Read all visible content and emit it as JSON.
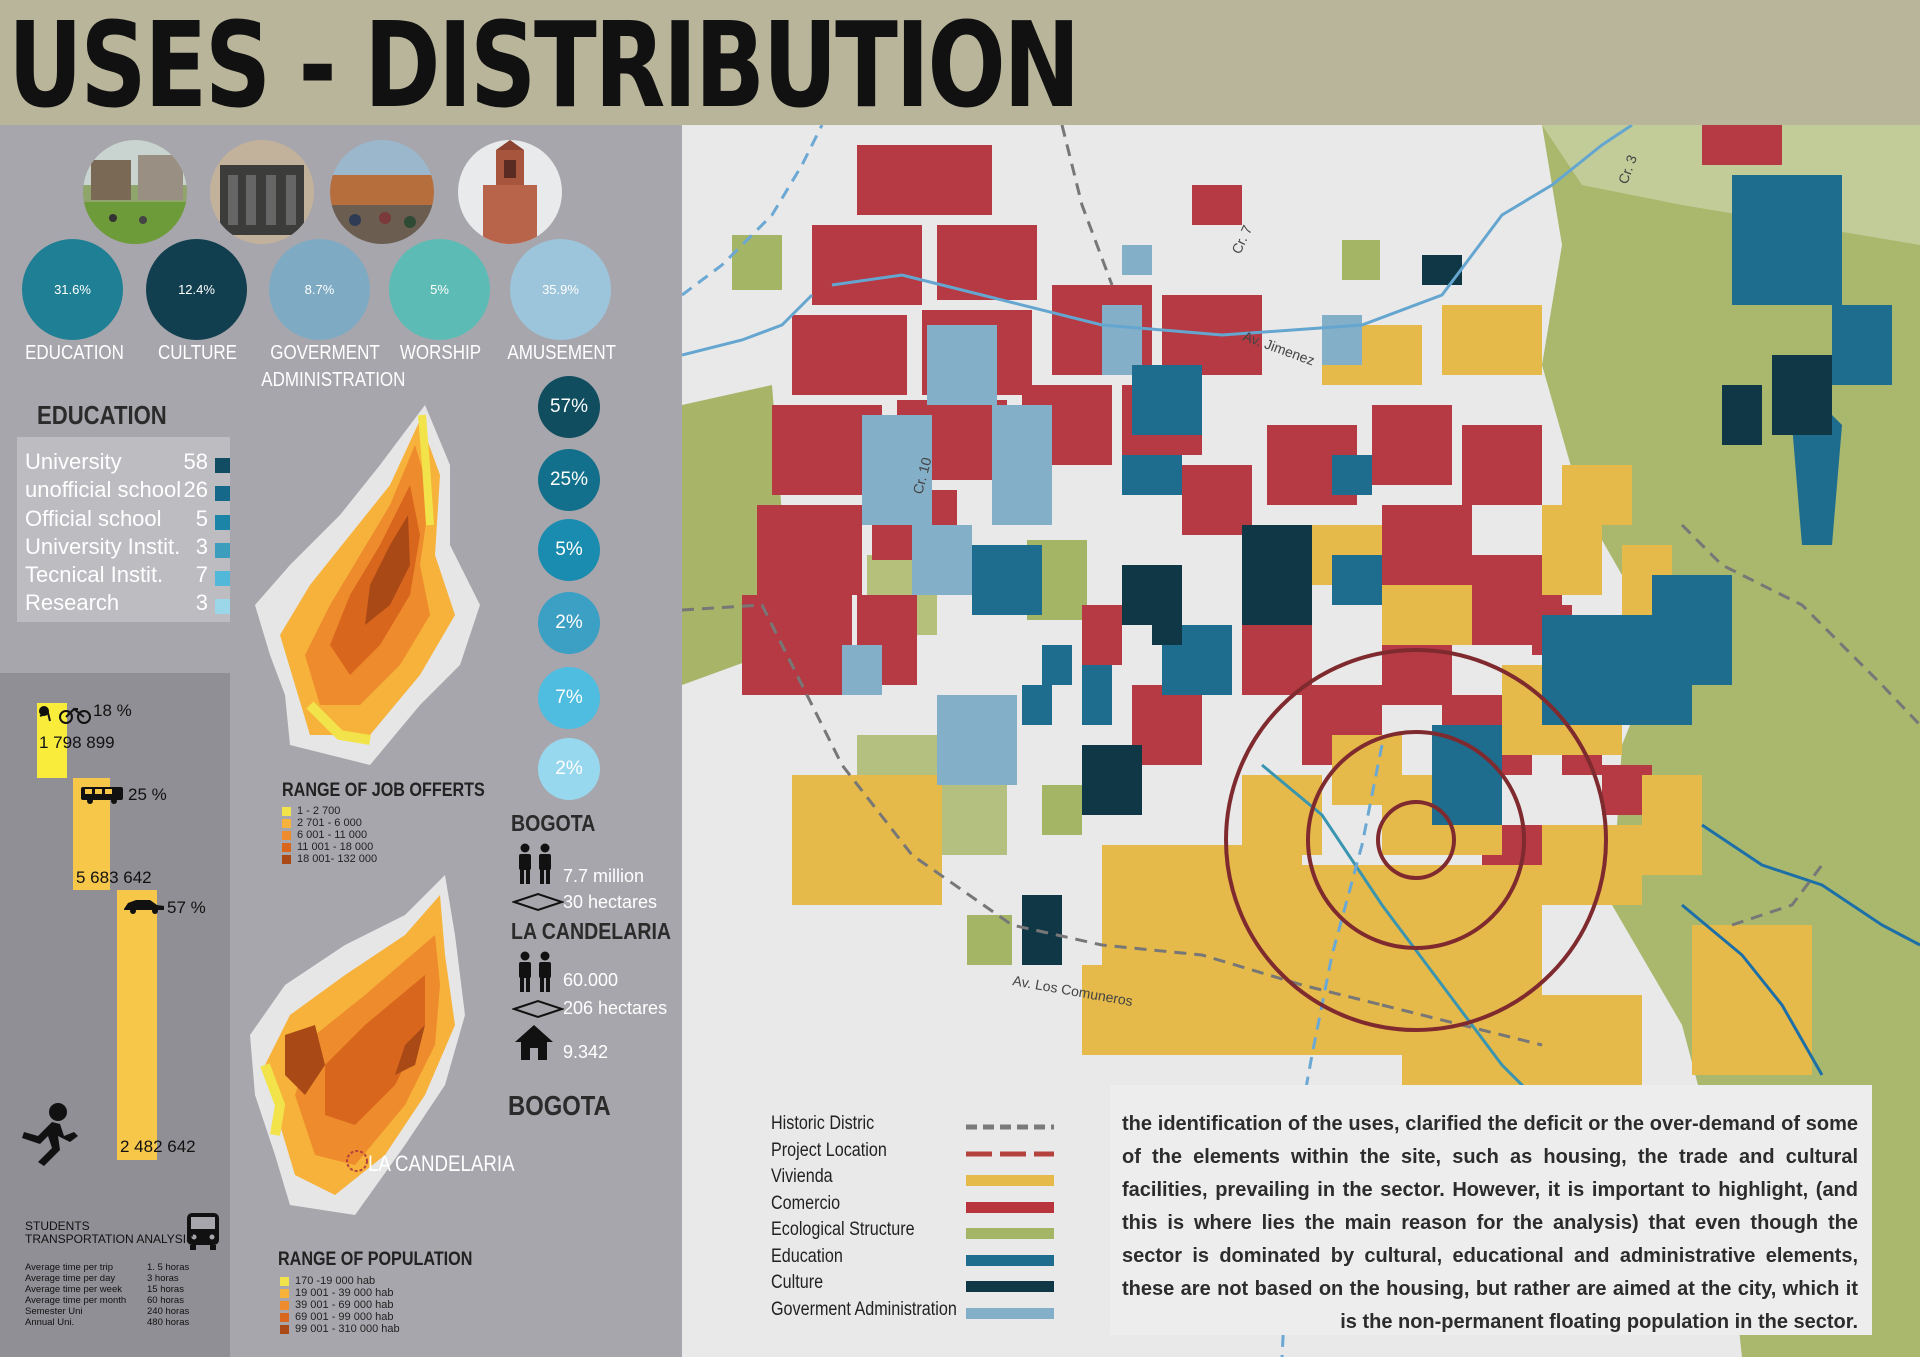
{
  "title": "USES - DISTRIBUTION",
  "categories": [
    {
      "pct": "31.6%",
      "label": "EDUCATION",
      "color": "#1f7f95"
    },
    {
      "pct": "12.4%",
      "label": "CULTURE",
      "color": "#123f4f"
    },
    {
      "pct": "8.7%",
      "label": "GOVERMENT ADMINISTRATION",
      "color": "#7eabc3"
    },
    {
      "pct": "5%",
      "label": "WORSHIP",
      "color": "#5cbcb5"
    },
    {
      "pct": "35.9%",
      "label": "AMUSEMENT",
      "color": "#9cc4da"
    }
  ],
  "photo_icons": [
    "campus-photo",
    "building-photo",
    "market-photo",
    "church-photo"
  ],
  "education": {
    "title": "EDUCATION",
    "rows": [
      {
        "label": "University",
        "count": "58",
        "color": "#124c63"
      },
      {
        "label": "unofficial school",
        "count": "26",
        "color": "#16688a"
      },
      {
        "label": "Official school",
        "count": "5",
        "color": "#1b84a7"
      },
      {
        "label": "University Instit.",
        "count": "3",
        "color": "#3d9dbd"
      },
      {
        "label": "Tecnical Instit.",
        "count": "7",
        "color": "#52b8d9"
      },
      {
        "label": "Research",
        "count": "3",
        "color": "#9bd6e9"
      }
    ],
    "percentages": [
      {
        "value": "57%",
        "color": "#0f4d5f"
      },
      {
        "value": "25%",
        "color": "#12708c"
      },
      {
        "value": "5%",
        "color": "#1a8cb0"
      },
      {
        "value": "2%",
        "color": "#3c9fc4"
      },
      {
        "value": "7%",
        "color": "#4fbde0"
      },
      {
        "value": "2%",
        "color": "#98d8ee"
      }
    ]
  },
  "transport": {
    "modes": [
      {
        "pct": "18 %",
        "count": "1 798 899",
        "icon": "bike-icon"
      },
      {
        "pct": "25 %",
        "count": "5 683 642",
        "icon": "bus-icon"
      },
      {
        "pct": "57 %",
        "count": "2 482 642",
        "icon": "car-icon"
      }
    ],
    "students_title_1": "STUDENTS",
    "students_title_2": "TRANSPORTATION ANALYSIS",
    "stats": [
      {
        "k": "Average time per trip",
        "v": "1. 5 horas"
      },
      {
        "k": "Average time per day",
        "v": "3 horas"
      },
      {
        "k": "Average time per week",
        "v": "15 horas"
      },
      {
        "k": "Average time per month",
        "v": "60 horas"
      },
      {
        "k": "Semester Uni",
        "v": "240 horas"
      },
      {
        "k": "Annual Uni.",
        "v": "480 horas"
      }
    ]
  },
  "job_map": {
    "title": "RANGE OF JOB OFFERTS",
    "legend": [
      {
        "label": "1 - 2 700",
        "color": "#f2e34a"
      },
      {
        "label": "2 701 - 6 000",
        "color": "#f6b23a"
      },
      {
        "label": "6 001 - 11 000",
        "color": "#ee8b2c"
      },
      {
        "label": "11 001 - 18 000",
        "color": "#d9661d"
      },
      {
        "label": "18 001- 132 000",
        "color": "#a94a16"
      }
    ]
  },
  "population_map": {
    "title": "RANGE OF POPULATION",
    "label": "LA CANDELARIA",
    "legend": [
      {
        "label": "170 -19 000 hab",
        "color": "#f2e34a"
      },
      {
        "label": "19 001 - 39 000 hab",
        "color": "#f6b23a"
      },
      {
        "label": "39 001 - 69 000 hab",
        "color": "#ee8b2c"
      },
      {
        "label": "69 001 - 99 000 hab",
        "color": "#d9661d"
      },
      {
        "label": "99 001 - 310 000 hab",
        "color": "#a94a16"
      }
    ]
  },
  "city": {
    "bogota": "BOGOTA",
    "bogota_population": "7.7 million",
    "bogota_area": "30 hectares",
    "candelaria": "LA CANDELARIA",
    "candelaria_population": "60.000",
    "candelaria_area": "206 hectares",
    "candelaria_homes": "9.342",
    "bogota_bottom": "BOGOTA"
  },
  "map": {
    "street_labels": [
      "Av. Jimenez",
      "Cr. 7",
      "Cr. 3",
      "Cr. 10",
      "Av. Los Comuneros"
    ]
  },
  "legend": [
    {
      "label": "Historic Distric",
      "color": "#7a7a7a",
      "style": "dashed"
    },
    {
      "label": "Project Location",
      "color": "#b5423e",
      "style": "dashed-red"
    },
    {
      "label": "Vivienda",
      "color": "#e5b94a",
      "style": "solid"
    },
    {
      "label": "Comercio",
      "color": "#b8353e",
      "style": "solid"
    },
    {
      "label": "Ecological Structure",
      "color": "#a5b566",
      "style": "solid"
    },
    {
      "label": "Education",
      "color": "#1f6d8e",
      "style": "solid"
    },
    {
      "label": "Culture",
      "color": "#0f3745",
      "style": "solid"
    },
    {
      "label": "Goverment Administration",
      "color": "#84afc9",
      "style": "solid"
    }
  ],
  "description": "the identification of the uses, clarified the deficit or the over-demand of some of the elements within the site, such as housing, the trade and cultural facilities, prevailing in the sector. However, it is important to highlight, (and this is where lies the main reason for the analysis) that even though the sector is dominated by cultural, educational and administrative elements, these are not based on the housing, but rather are aimed at the city, which it is the non-permanent floating population in the sector."
}
